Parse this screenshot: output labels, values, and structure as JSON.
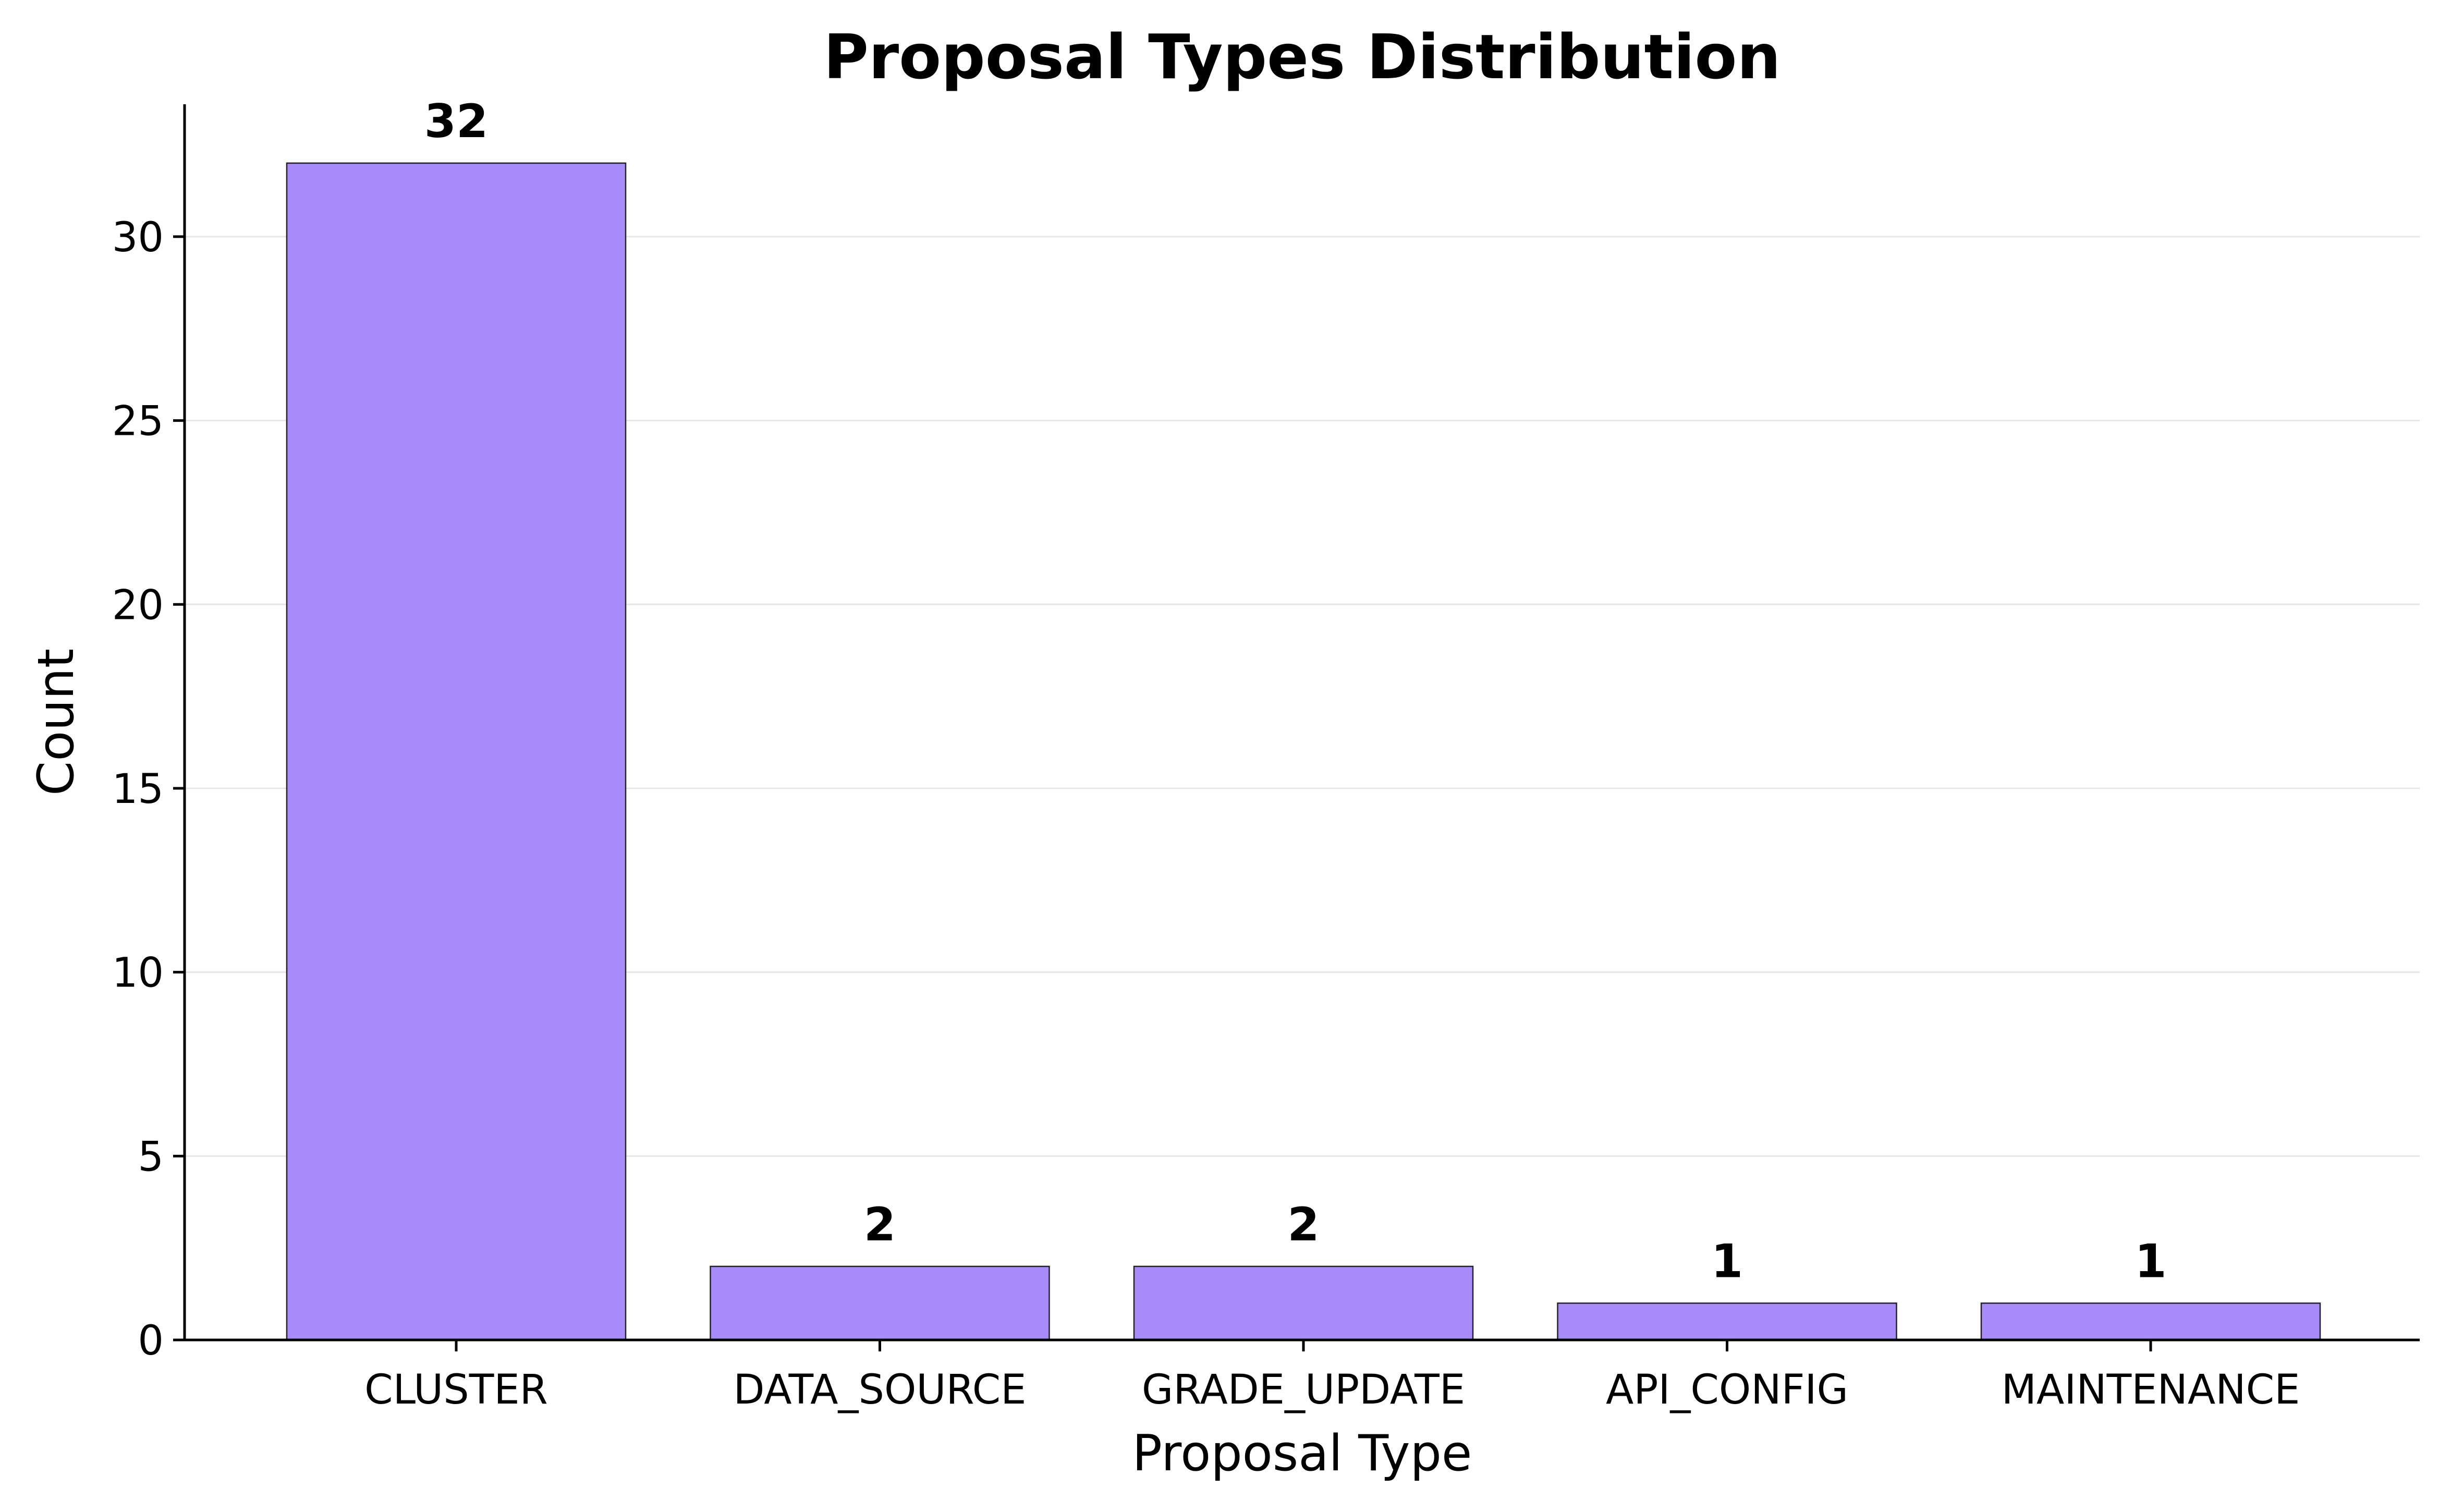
{
  "chart_data": {
    "type": "bar",
    "title": "Proposal Types Distribution",
    "xlabel": "Proposal Type",
    "ylabel": "Count",
    "categories": [
      "CLUSTER",
      "DATA_SOURCE",
      "GRADE_UPDATE",
      "API_CONFIG",
      "MAINTENANCE"
    ],
    "values": [
      32,
      2,
      2,
      1,
      1
    ],
    "data_labels": [
      "32",
      "2",
      "2",
      "1",
      "1"
    ],
    "ylim": [
      0,
      33.6
    ],
    "yticks": [
      0,
      5,
      10,
      15,
      20,
      25,
      30
    ],
    "ytick_labels": [
      "0",
      "5",
      "10",
      "15",
      "20",
      "25",
      "30"
    ],
    "grid": "y",
    "legend": "none",
    "bar_color": "#a78bfa",
    "bar_edge_color": "#222222"
  }
}
